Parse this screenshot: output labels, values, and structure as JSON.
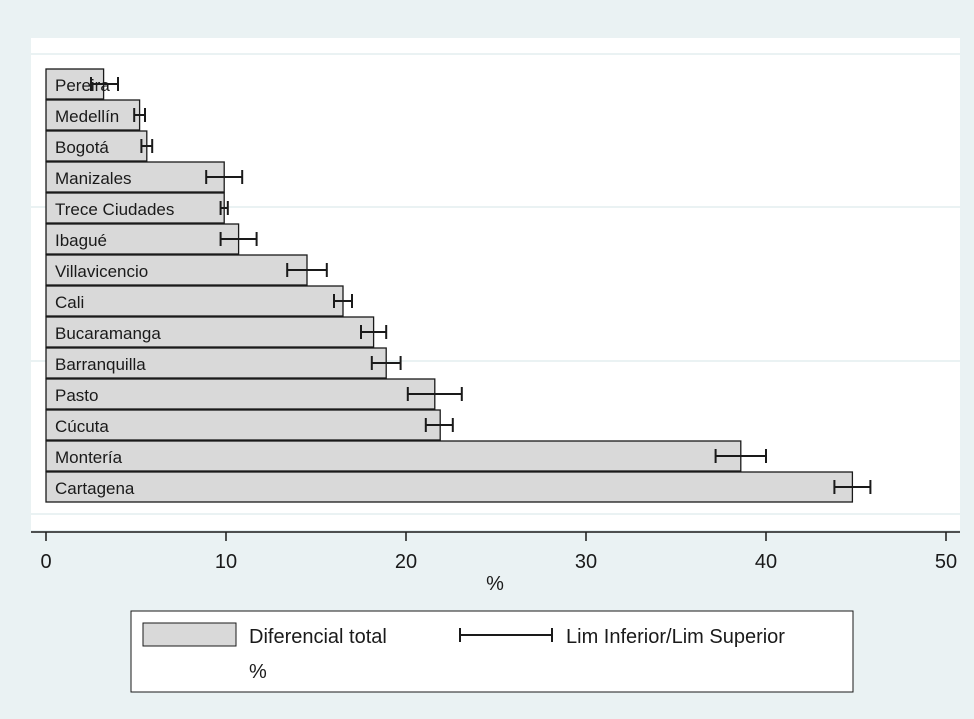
{
  "chart_data": {
    "type": "bar",
    "orientation": "horizontal",
    "categories": [
      "Pereira",
      "Medellín",
      "Bogotá",
      "Manizales",
      "Trece Ciudades",
      "Ibagué",
      "Villavicencio",
      "Cali",
      "Bucaramanga",
      "Barranquilla",
      "Pasto",
      "Cúcuta",
      "Montería",
      "Cartagena"
    ],
    "series": [
      {
        "name": "Diferencial total %",
        "values": [
          3.2,
          5.2,
          5.6,
          9.9,
          9.9,
          10.7,
          14.5,
          16.5,
          18.2,
          18.9,
          21.6,
          21.9,
          38.6,
          44.8
        ]
      }
    ],
    "error_bars": {
      "name": "Lim Inferior/Lim Superior",
      "lower": [
        2.5,
        4.9,
        5.3,
        8.9,
        9.7,
        9.7,
        13.4,
        16.0,
        17.5,
        18.1,
        20.1,
        21.1,
        37.2,
        43.8
      ],
      "upper": [
        4.0,
        5.5,
        5.9,
        10.9,
        10.1,
        11.7,
        15.6,
        17.0,
        18.9,
        19.7,
        23.1,
        22.6,
        40.0,
        45.8
      ]
    },
    "xlabel": "%",
    "xlim": [
      0,
      50
    ],
    "xticks": [
      "0",
      "10",
      "20",
      "30",
      "40",
      "50"
    ],
    "legend": {
      "placement": "bottom",
      "bar_label_line1": "Diferencial total",
      "bar_label_line2": "%",
      "line_label": "Lim Inferior/Lim Superior"
    },
    "grid": true,
    "colors": {
      "bar_fill": "#d9d9d9",
      "bar_stroke": "#1a1a1a",
      "error_bar": "#1a1a1a",
      "plot_background": "#ffffff",
      "outer_background": "#eaf2f3",
      "grid": "#eaf2f3"
    }
  }
}
